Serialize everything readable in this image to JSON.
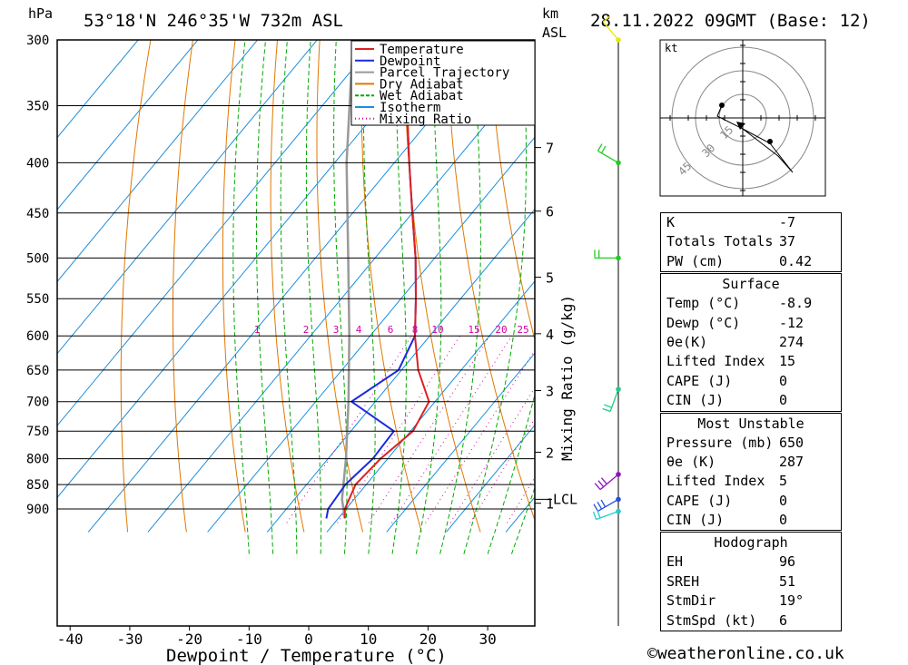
{
  "header": {
    "location": "53°18'N  246°35'W  732m  ASL",
    "datetime": "28.11.2022  09GMT  (Base: 12)",
    "left_unit": "hPa",
    "right_unit_top": "km",
    "right_unit_bottom": "ASL"
  },
  "chart_data": {
    "type": "skew-t",
    "xlabel": "Dewpoint / Temperature (°C)",
    "ylabel": "hPa",
    "mixing_ratio_label": "Mixing Ratio (g/kg)",
    "x_ticks": [
      -40,
      -30,
      -20,
      -10,
      0,
      10,
      20,
      30
    ],
    "pressure_levels": [
      300,
      350,
      400,
      450,
      500,
      550,
      600,
      650,
      700,
      750,
      800,
      850,
      900
    ],
    "km_ticks": [
      {
        "label": "7",
        "p": 386
      },
      {
        "label": "6",
        "p": 448
      },
      {
        "label": "5",
        "p": 523
      },
      {
        "label": "4",
        "p": 597
      },
      {
        "label": "3",
        "p": 682
      },
      {
        "label": "2",
        "p": 788
      },
      {
        "label": "1",
        "p": 888
      }
    ],
    "lcl": {
      "label": "LCL",
      "p": 880
    },
    "mixing_ratio_values": [
      "1",
      "2",
      "3",
      "4",
      "6",
      "8",
      "10",
      "15",
      "20",
      "25"
    ],
    "legend": [
      {
        "name": "Temperature",
        "color": "#e02020",
        "style": "solid"
      },
      {
        "name": "Dewpoint",
        "color": "#1a2ae0",
        "style": "solid"
      },
      {
        "name": "Parcel Trajectory",
        "color": "#999999",
        "style": "solid"
      },
      {
        "name": "Dry Adiabat",
        "color": "#e07800",
        "style": "solid"
      },
      {
        "name": "Wet Adiabat",
        "color": "#00aa00",
        "style": "dashed"
      },
      {
        "name": "Isotherm",
        "color": "#1a8ee0",
        "style": "solid"
      },
      {
        "name": "Mixing Ratio",
        "color": "#d000a0",
        "style": "dotted"
      }
    ],
    "temperature": [
      {
        "p": 920,
        "t": -8.9
      },
      {
        "p": 900,
        "t": -10.2
      },
      {
        "p": 850,
        "t": -11.8
      },
      {
        "p": 800,
        "t": -11.2
      },
      {
        "p": 750,
        "t": -9.6
      },
      {
        "p": 700,
        "t": -11.0
      },
      {
        "p": 650,
        "t": -17.2
      },
      {
        "p": 600,
        "t": -22.5
      },
      {
        "p": 550,
        "t": -27.5
      },
      {
        "p": 500,
        "t": -33.2
      },
      {
        "p": 450,
        "t": -40.0
      },
      {
        "p": 400,
        "t": -47.5
      },
      {
        "p": 350,
        "t": -55.8
      },
      {
        "p": 300,
        "t": -62.0
      }
    ],
    "dewpoint": [
      {
        "p": 920,
        "t": -12.0
      },
      {
        "p": 900,
        "t": -13.0
      },
      {
        "p": 850,
        "t": -13.5
      },
      {
        "p": 800,
        "t": -12.5
      },
      {
        "p": 750,
        "t": -12.8
      },
      {
        "p": 700,
        "t": -24.0
      },
      {
        "p": 650,
        "t": -20.5
      },
      {
        "p": 600,
        "t": -22.5
      },
      {
        "p": 550,
        "t": -27.5
      },
      {
        "p": 500,
        "t": -33.2
      },
      {
        "p": 450,
        "t": -40.0
      },
      {
        "p": 400,
        "t": -47.5
      },
      {
        "p": 350,
        "t": -55.8
      },
      {
        "p": 300,
        "t": -62.0
      }
    ],
    "parcel": [
      {
        "p": 920,
        "t": -8.9
      },
      {
        "p": 880,
        "t": -12.0
      },
      {
        "p": 800,
        "t": -17.0
      },
      {
        "p": 700,
        "t": -24.5
      },
      {
        "p": 600,
        "t": -33.5
      },
      {
        "p": 500,
        "t": -44.5
      },
      {
        "p": 400,
        "t": -58.0
      },
      {
        "p": 300,
        "t": -74.0
      }
    ],
    "wind_barbs": [
      {
        "p": 300,
        "color": "#e8e800",
        "dir": 320,
        "kt": 10
      },
      {
        "p": 400,
        "color": "#22cc22",
        "dir": 300,
        "kt": 15
      },
      {
        "p": 500,
        "color": "#22cc22",
        "dir": 270,
        "kt": 20
      },
      {
        "p": 680,
        "color": "#22cc88",
        "dir": 200,
        "kt": 15
      },
      {
        "p": 830,
        "color": "#9010c0",
        "dir": 230,
        "kt": 30
      },
      {
        "p": 880,
        "color": "#2050e0",
        "dir": 240,
        "kt": 25
      },
      {
        "p": 905,
        "color": "#22cccc",
        "dir": 250,
        "kt": 15
      }
    ]
  },
  "hodograph": {
    "unit": "kt",
    "rings": [
      "15",
      "30",
      "45"
    ]
  },
  "indices": {
    "basic": [
      {
        "label": "K",
        "value": "-7"
      },
      {
        "label": "Totals Totals",
        "value": "37"
      },
      {
        "label": "PW (cm)",
        "value": "0.42"
      }
    ],
    "surface": {
      "title": "Surface",
      "rows": [
        {
          "label": "Temp (°C)",
          "value": "-8.9"
        },
        {
          "label": "Dewp (°C)",
          "value": "-12"
        },
        {
          "label": "θe(K)",
          "value": "274"
        },
        {
          "label": "Lifted Index",
          "value": "15"
        },
        {
          "label": "CAPE (J)",
          "value": "0"
        },
        {
          "label": "CIN (J)",
          "value": "0"
        }
      ]
    },
    "most_unstable": {
      "title": "Most Unstable",
      "rows": [
        {
          "label": "Pressure (mb)",
          "value": "650"
        },
        {
          "label": "θe (K)",
          "value": "287"
        },
        {
          "label": "Lifted Index",
          "value": "5"
        },
        {
          "label": "CAPE (J)",
          "value": "0"
        },
        {
          "label": "CIN (J)",
          "value": "0"
        }
      ]
    },
    "hodograph_box": {
      "title": "Hodograph",
      "rows": [
        {
          "label": "EH",
          "value": "96"
        },
        {
          "label": "SREH",
          "value": "51"
        },
        {
          "label": "StmDir",
          "value": "19°"
        },
        {
          "label": "StmSpd (kt)",
          "value": "6"
        }
      ]
    }
  },
  "footer": {
    "copyright": "©weatheronline.co.uk"
  }
}
